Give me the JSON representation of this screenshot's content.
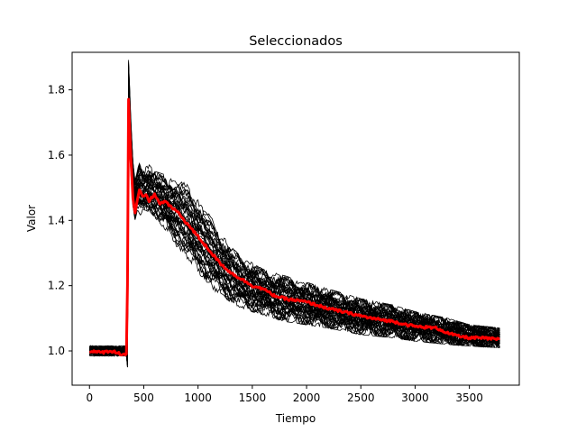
{
  "chart_data": {
    "type": "line",
    "title": "Seleccionados",
    "xlabel": "Tiempo",
    "ylabel": "Valor",
    "xlim": [
      -160,
      3960
    ],
    "ylim": [
      0.895,
      1.915
    ],
    "grid": false,
    "x_ticks": [
      0,
      500,
      1000,
      1500,
      2000,
      2500,
      3000,
      3500
    ],
    "y_ticks": [
      1.0,
      1.2,
      1.4,
      1.6,
      1.8
    ],
    "x_tick_labels": [
      "0",
      "500",
      "1000",
      "1500",
      "2000",
      "2500",
      "3000",
      "3500"
    ],
    "y_tick_labels": [
      "1.0",
      "1.2",
      "1.4",
      "1.6",
      "1.8"
    ],
    "bundle": {
      "color": "#000000",
      "count": 40,
      "description_values": "many black trajectories; envelope given by lower/upper",
      "x": [
        0,
        340,
        350,
        360,
        380,
        400,
        420,
        440,
        460,
        480,
        500,
        550,
        600,
        700,
        800,
        900,
        1000,
        1100,
        1200,
        1300,
        1400,
        1500,
        1600,
        1800,
        2000,
        2200,
        2500,
        2800,
        3000,
        3300,
        3500,
        3780
      ],
      "lower": [
        0.985,
        0.985,
        0.95,
        1.7,
        1.55,
        1.44,
        1.4,
        1.43,
        1.42,
        1.41,
        1.42,
        1.43,
        1.41,
        1.37,
        1.32,
        1.28,
        1.24,
        1.2,
        1.17,
        1.15,
        1.13,
        1.12,
        1.11,
        1.09,
        1.08,
        1.07,
        1.05,
        1.04,
        1.03,
        1.02,
        1.015,
        1.01
      ],
      "upper": [
        1.015,
        1.015,
        1.02,
        1.91,
        1.72,
        1.58,
        1.52,
        1.55,
        1.58,
        1.57,
        1.56,
        1.57,
        1.55,
        1.54,
        1.53,
        1.51,
        1.47,
        1.42,
        1.37,
        1.32,
        1.29,
        1.27,
        1.25,
        1.23,
        1.21,
        1.19,
        1.16,
        1.14,
        1.12,
        1.1,
        1.08,
        1.07
      ]
    },
    "series": [
      {
        "color": "#ff0000",
        "x": [
          0,
          100,
          200,
          300,
          340,
          350,
          360,
          370,
          380,
          400,
          420,
          440,
          460,
          480,
          500,
          520,
          550,
          600,
          650,
          700,
          750,
          800,
          900,
          1000,
          1100,
          1200,
          1300,
          1400,
          1500,
          1600,
          1700,
          1800,
          1900,
          2000,
          2200,
          2400,
          2600,
          2800,
          3000,
          3200,
          3300,
          3400,
          3500,
          3600,
          3780
        ],
        "y": [
          1.0,
          0.995,
          1.0,
          0.99,
          0.99,
          1.2,
          1.77,
          1.68,
          1.6,
          1.47,
          1.42,
          1.46,
          1.49,
          1.48,
          1.47,
          1.48,
          1.46,
          1.48,
          1.45,
          1.46,
          1.44,
          1.43,
          1.39,
          1.35,
          1.31,
          1.27,
          1.24,
          1.22,
          1.2,
          1.19,
          1.17,
          1.16,
          1.155,
          1.15,
          1.13,
          1.115,
          1.1,
          1.09,
          1.075,
          1.07,
          1.055,
          1.045,
          1.04,
          1.04,
          1.035
        ]
      }
    ]
  }
}
